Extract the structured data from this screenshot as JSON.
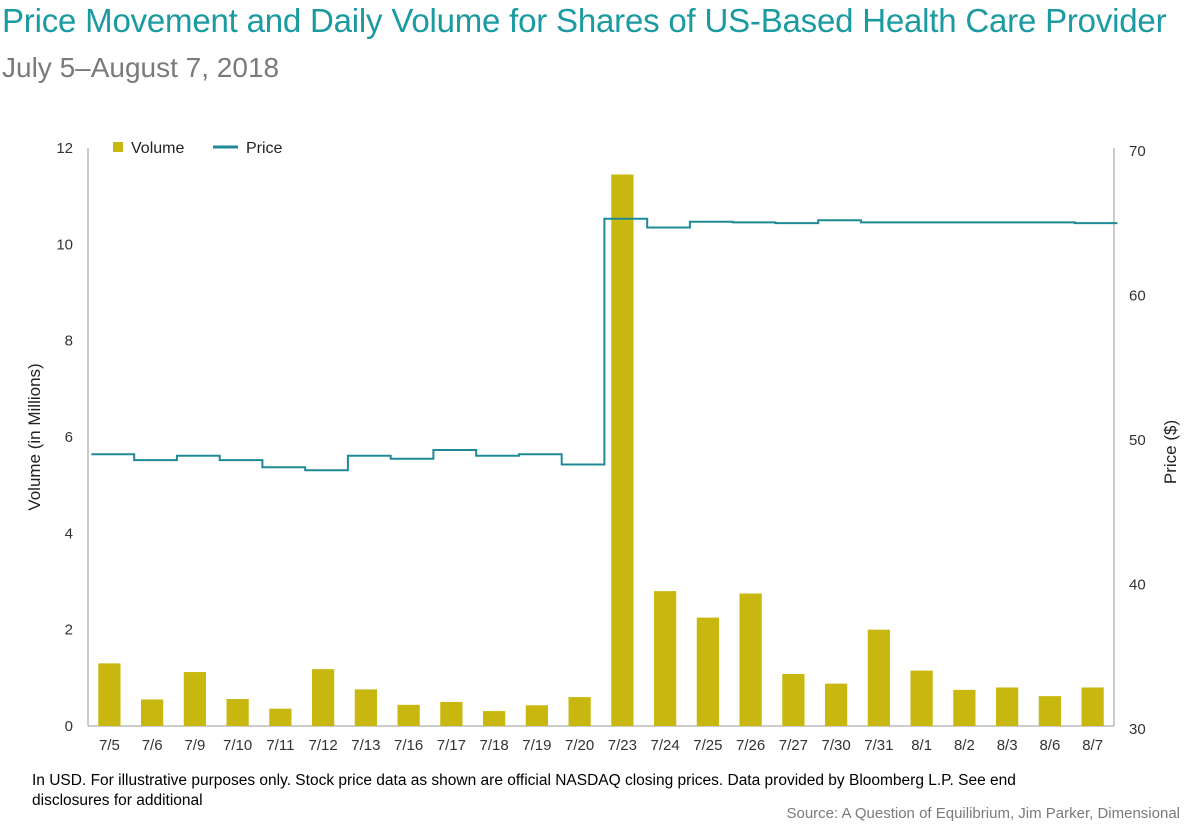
{
  "chart_data": {
    "type": "bar+line",
    "title": "Price Movement and Daily Volume for Shares of US-Based Health Care Provider",
    "subtitle": "July 5–August 7, 2018",
    "categories": [
      "7/5",
      "7/6",
      "7/9",
      "7/10",
      "7/11",
      "7/12",
      "7/13",
      "7/16",
      "7/17",
      "7/18",
      "7/19",
      "7/20",
      "7/23",
      "7/24",
      "7/25",
      "7/26",
      "7/27",
      "7/30",
      "7/31",
      "8/1",
      "8/2",
      "8/3",
      "8/6",
      "8/7"
    ],
    "series": [
      {
        "name": "Volume",
        "type": "bar",
        "axis": "left",
        "color": "#c8b70f",
        "values": [
          1.3,
          0.55,
          1.12,
          0.56,
          0.36,
          1.18,
          0.76,
          0.44,
          0.5,
          0.31,
          0.43,
          0.6,
          11.45,
          2.8,
          2.25,
          2.75,
          1.08,
          0.88,
          2.0,
          1.15,
          0.75,
          0.8,
          0.62,
          0.8
        ]
      },
      {
        "name": "Price",
        "type": "step-line",
        "axis": "right",
        "color": "#1d8a95",
        "values": [
          48.8,
          48.4,
          48.7,
          48.4,
          47.9,
          47.7,
          48.7,
          48.5,
          49.1,
          48.7,
          48.8,
          48.1,
          65.1,
          64.5,
          64.9,
          64.85,
          64.8,
          65.0,
          64.85,
          64.85,
          64.85,
          64.85,
          64.85,
          64.8
        ]
      }
    ],
    "ylabel": "Volume (in Millions)",
    "y2label": "Price ($)",
    "ylim": [
      0,
      12
    ],
    "yticks": [
      0,
      2,
      4,
      6,
      8,
      10,
      12
    ],
    "y2lim": [
      30,
      70
    ],
    "y2ticks": [
      30,
      40,
      50,
      60,
      70
    ],
    "legend": [
      "Volume",
      "Price"
    ],
    "legend_position": "top-left",
    "grid": false
  },
  "footnote": "In USD. For illustrative purposes only. Stock price data as shown are official NASDAQ closing prices. Data provided by Bloomberg L.P. See end disclosures for additional",
  "source": "Source: A Question of Equilibrium, Jim Parker, Dimensional"
}
